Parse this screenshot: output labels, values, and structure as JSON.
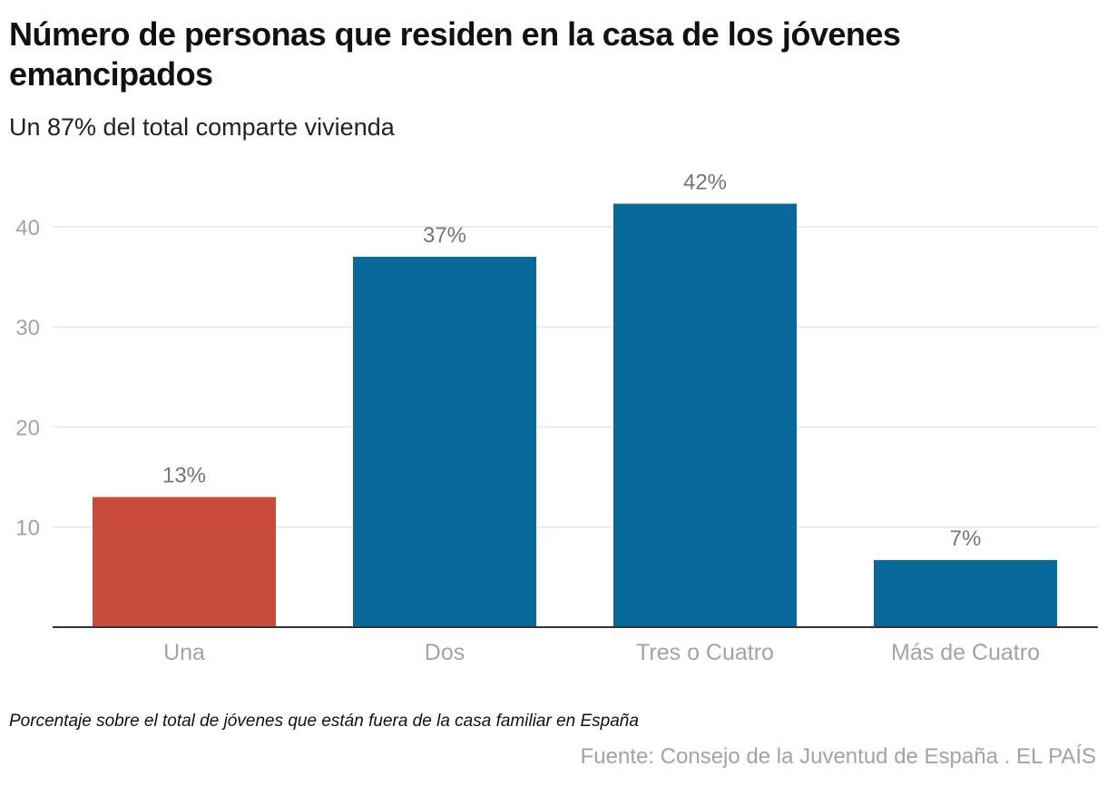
{
  "header": {
    "title": "Número de personas que residen en la casa de los jóvenes emancipados",
    "subtitle": "Un 87% del total comparte vivienda"
  },
  "footer": {
    "note": "Porcentaje sobre el total de jóvenes que están fuera de la casa familiar en España",
    "source": "Fuente: Consejo de la Juventud de España . EL PAÍS"
  },
  "colors": {
    "highlight": "#c94c3a",
    "primary": "#06699a",
    "grid": "#e6e6e6",
    "axis": "#333333"
  },
  "chart_data": {
    "type": "bar",
    "title": "Número de personas que residen en la casa de los jóvenes emancipados",
    "subtitle": "Un 87% del total comparte vivienda",
    "xlabel": "",
    "ylabel": "",
    "categories": [
      "Una",
      "Dos",
      "Tres o Cuatro",
      "Más de Cuatro"
    ],
    "values": [
      13,
      37,
      42.3,
      6.7
    ],
    "data_labels": [
      "13%",
      "37%",
      "42%",
      "7%"
    ],
    "bar_colors": [
      "#c94c3a",
      "#06699a",
      "#06699a",
      "#06699a"
    ],
    "yticks": [
      10,
      20,
      30,
      40
    ],
    "ylim": [
      0,
      47
    ],
    "grid": true,
    "legend": "none"
  }
}
